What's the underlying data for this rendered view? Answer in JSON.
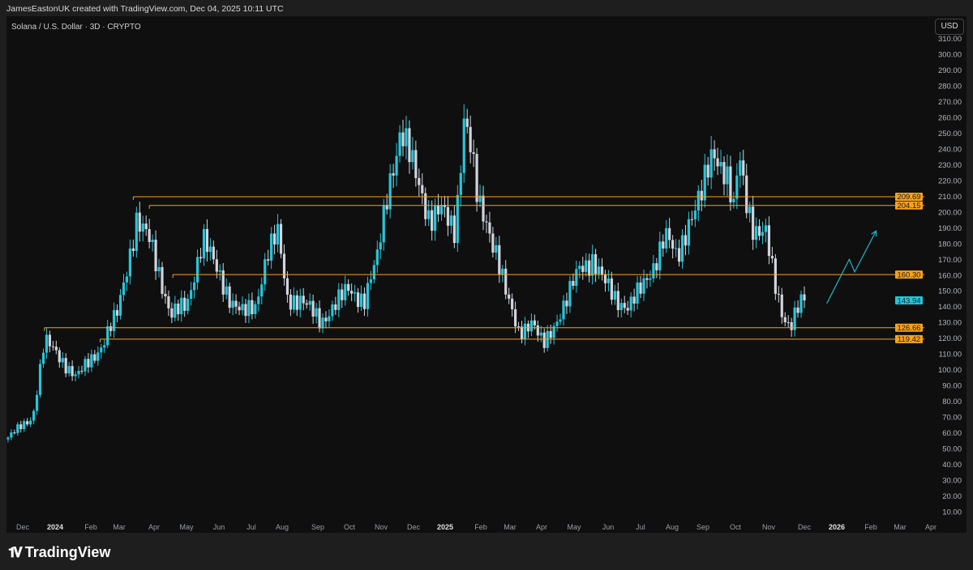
{
  "header": {
    "attribution": "JamesEastonUK created with TradingView.com, Dec 04, 2025 10:11 UTC"
  },
  "chart": {
    "symbol_title": "Solana / U.S. Dollar · 3D · CRYPTO",
    "currency": "USD"
  },
  "footer": {
    "logo_text": "TradingView"
  },
  "chart_data": {
    "type": "candlestick",
    "title": "Solana / U.S. Dollar · 3D · CRYPTO",
    "interval": "3D",
    "ylim": [
      10,
      310
    ],
    "y_ticks": [
      10,
      20,
      30,
      40,
      50,
      60,
      70,
      80,
      90,
      100,
      110,
      120,
      130,
      140,
      150,
      160,
      170,
      180,
      190,
      200,
      210,
      220,
      230,
      240,
      250,
      260,
      270,
      280,
      290,
      300,
      310
    ],
    "x_ticks": [
      "Dec",
      "2024",
      "Feb",
      "Mar",
      "Apr",
      "May",
      "Jun",
      "Jul",
      "Aug",
      "Sep",
      "Oct",
      "Nov",
      "Dec",
      "2025",
      "Feb",
      "Mar",
      "Apr",
      "May",
      "Jun",
      "Jul",
      "Aug",
      "Sep",
      "Oct",
      "Nov",
      "Dec",
      "2026",
      "Feb",
      "Mar",
      "Apr"
    ],
    "colors": {
      "up": "#26c6da",
      "down": "#d1d4dc",
      "level": "#f7a21b",
      "last_price": "#26c6da",
      "drawing": "#22b5c8"
    },
    "approx_close_path": [
      [
        "2023-11-18",
        57
      ],
      [
        "2023-12-11",
        70
      ],
      [
        "2023-12-22",
        118
      ],
      [
        "2024-01-03",
        110
      ],
      [
        "2024-01-21",
        95
      ],
      [
        "2024-02-13",
        115
      ],
      [
        "2024-02-28",
        135
      ],
      [
        "2024-03-11",
        175
      ],
      [
        "2024-03-17",
        195
      ],
      [
        "2024-03-30",
        180
      ],
      [
        "2024-04-10",
        155
      ],
      [
        "2024-04-18",
        135
      ],
      [
        "2024-05-03",
        140
      ],
      [
        "2024-05-18",
        185
      ],
      [
        "2024-05-29",
        165
      ],
      [
        "2024-06-13",
        145
      ],
      [
        "2024-06-25",
        135
      ],
      [
        "2024-07-06",
        140
      ],
      [
        "2024-07-17",
        175
      ],
      [
        "2024-07-27",
        185
      ],
      [
        "2024-08-05",
        145
      ],
      [
        "2024-08-17",
        145
      ],
      [
        "2024-09-05",
        130
      ],
      [
        "2024-09-16",
        140
      ],
      [
        "2024-10-01",
        150
      ],
      [
        "2024-10-16",
        145
      ],
      [
        "2024-10-28",
        170
      ],
      [
        "2024-11-08",
        220
      ],
      [
        "2024-11-19",
        250
      ],
      [
        "2024-11-27",
        235
      ],
      [
        "2024-12-08",
        215
      ],
      [
        "2024-12-16",
        195
      ],
      [
        "2024-12-27",
        200
      ],
      [
        "2025-01-08",
        190
      ],
      [
        "2025-01-12",
        215
      ],
      [
        "2025-01-17",
        260
      ],
      [
        "2025-01-23",
        240
      ],
      [
        "2025-01-30",
        205
      ],
      [
        "2025-02-07",
        195
      ],
      [
        "2025-02-16",
        175
      ],
      [
        "2025-02-26",
        145
      ],
      [
        "2025-03-09",
        125
      ],
      [
        "2025-03-21",
        130
      ],
      [
        "2025-04-01",
        115
      ],
      [
        "2025-04-12",
        130
      ],
      [
        "2025-04-24",
        145
      ],
      [
        "2025-05-05",
        165
      ],
      [
        "2025-05-17",
        170
      ],
      [
        "2025-05-28",
        155
      ],
      [
        "2025-06-08",
        145
      ],
      [
        "2025-06-20",
        140
      ],
      [
        "2025-07-01",
        150
      ],
      [
        "2025-07-12",
        165
      ],
      [
        "2025-07-24",
        185
      ],
      [
        "2025-08-04",
        170
      ],
      [
        "2025-08-15",
        195
      ],
      [
        "2025-08-27",
        210
      ],
      [
        "2025-09-07",
        240
      ],
      [
        "2025-09-19",
        225
      ],
      [
        "2025-09-26",
        200
      ],
      [
        "2025-10-01",
        235
      ],
      [
        "2025-10-07",
        210
      ],
      [
        "2025-10-15",
        190
      ],
      [
        "2025-10-26",
        185
      ],
      [
        "2025-11-03",
        155
      ],
      [
        "2025-11-11",
        135
      ],
      [
        "2025-11-18",
        128
      ],
      [
        "2025-11-26",
        140
      ],
      [
        "2025-12-03",
        143.94
      ]
    ],
    "levels": [
      {
        "price": 209.69,
        "label": "209.69",
        "from": "2024-03-14"
      },
      {
        "price": 204.15,
        "label": "204.15",
        "from": "2024-03-29"
      },
      {
        "price": 160.3,
        "label": "160.30",
        "from": "2024-04-20"
      },
      {
        "price": 126.66,
        "label": "126.66",
        "from": "2023-12-22"
      },
      {
        "price": 119.42,
        "label": "119.42",
        "from": "2024-02-12"
      }
    ],
    "last_price": {
      "value": 143.94,
      "label": "143.94"
    },
    "projection_path": [
      [
        "2025-12-22",
        142
      ],
      [
        "2026-01-12",
        170
      ],
      [
        "2026-01-17",
        162
      ],
      [
        "2026-02-06",
        188
      ]
    ]
  }
}
